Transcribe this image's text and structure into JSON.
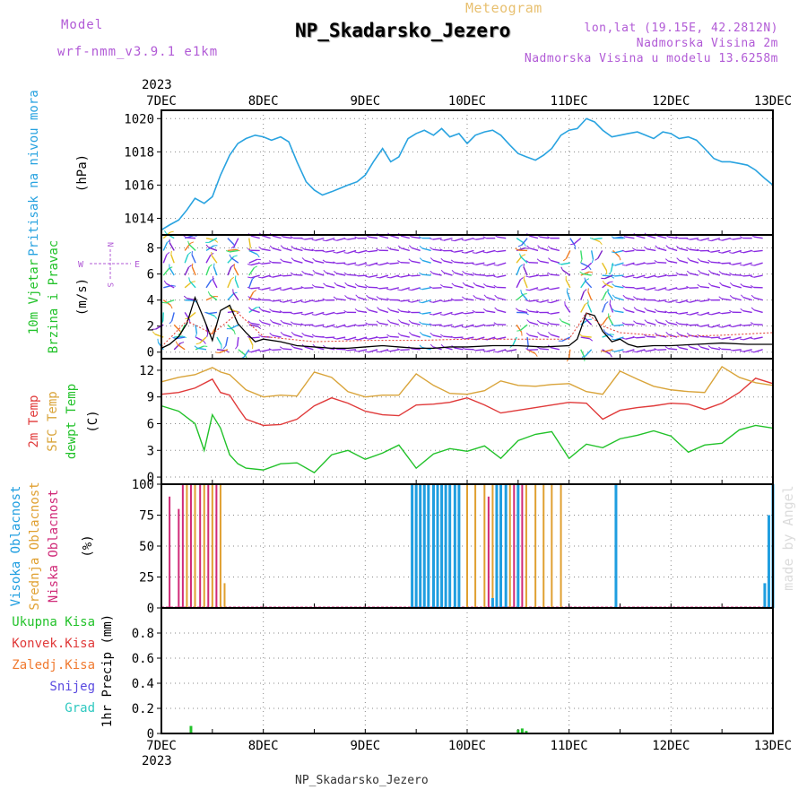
{
  "header": {
    "model_label": "Model",
    "model_name": "wrf-nmm_v3.9.1  e1km",
    "supertitle": "Meteogram",
    "title": "NP_Skadarsko_Jezero",
    "lonlat": "lon,lat (19.15E, 42.2812N)",
    "altitude": "Nadmorska Visina 2m",
    "model_altitude": "Nadmorska Visina u modelu 13.6258m",
    "credit": "made by Angel",
    "footer": "NP_Skadarsko_Jezero"
  },
  "colors": {
    "pressure": "#29a3e0",
    "wind_speed": "#000000",
    "wind_gust": "#e03a2e",
    "temp_2m": "#e03a3a",
    "temp_sfc": "#d9a43a",
    "dewpoint": "#22c22a",
    "cloud_high": "#1f9ee0",
    "cloud_mid": "#e0a030",
    "cloud_low": "#d02a78",
    "precip_total": "#22c22a",
    "grid": "#888888"
  },
  "chart_data": {
    "type": "meteogram",
    "time_axis": {
      "year": "2023",
      "ticks": [
        "7DEC",
        "8DEC",
        "9DEC",
        "10DEC",
        "11DEC",
        "12DEC",
        "13DEC"
      ],
      "range_days": [
        0,
        6
      ]
    },
    "panels": [
      {
        "id": "pressure",
        "type": "line",
        "ylabel_main": "Pritisak na nivou mora",
        "ylabel_unit": "(hPa)",
        "yticks": [
          1014,
          1016,
          1018,
          1020
        ],
        "ylim": [
          1013,
          1020.5
        ],
        "series": [
          {
            "name": "Pritisak na nivou mora",
            "x": [
              0,
              0.08,
              0.17,
              0.25,
              0.33,
              0.42,
              0.5,
              0.58,
              0.67,
              0.75,
              0.83,
              0.92,
              1.0,
              1.08,
              1.17,
              1.25,
              1.33,
              1.42,
              1.5,
              1.58,
              1.67,
              1.75,
              1.83,
              1.92,
              2.0,
              2.08,
              2.17,
              2.25,
              2.33,
              2.42,
              2.5,
              2.58,
              2.67,
              2.75,
              2.83,
              2.92,
              3.0,
              3.08,
              3.17,
              3.25,
              3.33,
              3.42,
              3.5,
              3.58,
              3.67,
              3.75,
              3.83,
              3.92,
              4.0,
              4.08,
              4.17,
              4.25,
              4.33,
              4.42,
              4.5,
              4.58,
              4.67,
              4.75,
              4.83,
              4.92,
              5.0,
              5.08,
              5.17,
              5.25,
              5.33,
              5.42,
              5.5,
              5.58,
              5.67,
              5.75,
              5.83,
              5.92,
              6.0
            ],
            "y": [
              1013.3,
              1013.6,
              1013.9,
              1014.5,
              1015.2,
              1014.9,
              1015.3,
              1016.6,
              1017.8,
              1018.5,
              1018.8,
              1019.0,
              1018.9,
              1018.7,
              1018.9,
              1018.6,
              1017.4,
              1016.2,
              1015.7,
              1015.4,
              1015.6,
              1015.8,
              1016.0,
              1016.2,
              1016.6,
              1017.4,
              1018.2,
              1017.4,
              1017.7,
              1018.8,
              1019.1,
              1019.3,
              1019.0,
              1019.4,
              1018.9,
              1019.1,
              1018.5,
              1019.0,
              1019.2,
              1019.3,
              1019.0,
              1018.4,
              1017.9,
              1017.7,
              1017.5,
              1017.8,
              1018.2,
              1019.0,
              1019.3,
              1019.4,
              1020.0,
              1019.8,
              1019.3,
              1018.9,
              1019.0,
              1019.1,
              1019.2,
              1019.0,
              1018.8,
              1019.2,
              1019.1,
              1018.8,
              1018.9,
              1018.7,
              1018.2,
              1017.6,
              1017.4,
              1017.4,
              1017.3,
              1017.2,
              1016.9,
              1016.4,
              1016.0
            ]
          }
        ]
      },
      {
        "id": "wind",
        "type": "line+barbs",
        "ylabel_main": "10m Vjetar",
        "ylabel_sub": "Brzina i Pravac",
        "ylabel_unit": "(m/s)",
        "compass": {
          "n": "N",
          "s": "S",
          "w": "W",
          "e": "E"
        },
        "yticks": [
          0,
          2,
          4,
          6,
          8
        ],
        "ylim": [
          -0.5,
          9
        ],
        "series": [
          {
            "name": "speed",
            "x": [
              0,
              0.08,
              0.17,
              0.25,
              0.33,
              0.42,
              0.5,
              0.58,
              0.67,
              0.75,
              0.83,
              0.92,
              1.0,
              1.17,
              1.33,
              1.5,
              1.67,
              1.83,
              2.0,
              2.17,
              2.33,
              2.5,
              2.67,
              2.83,
              3.0,
              3.25,
              3.5,
              3.75,
              4.0,
              4.08,
              4.17,
              4.25,
              4.33,
              4.42,
              4.5,
              4.58,
              4.67,
              4.83,
              5.0,
              5.25,
              5.5,
              5.75,
              6.0
            ],
            "y": [
              0.3,
              0.6,
              1.2,
              2.2,
              4.2,
              2.5,
              0.9,
              3.2,
              3.6,
              2.2,
              1.5,
              0.8,
              1.0,
              0.8,
              0.5,
              0.4,
              0.3,
              0.3,
              0.4,
              0.5,
              0.4,
              0.3,
              0.3,
              0.4,
              0.4,
              0.5,
              0.5,
              0.4,
              0.5,
              1.0,
              3.0,
              2.8,
              1.6,
              0.8,
              1.0,
              0.6,
              0.4,
              0.5,
              0.5,
              0.6,
              0.7,
              0.6,
              0.6
            ]
          },
          {
            "name": "gust",
            "x": [
              0,
              0.25,
              0.5,
              0.75,
              1.0,
              1.5,
              2.0,
              2.5,
              3.0,
              3.5,
              4.0,
              4.17,
              4.33,
              4.5,
              5.0,
              5.5,
              6.0
            ],
            "y": [
              0.4,
              2.4,
              1.4,
              3.0,
              1.2,
              0.8,
              0.9,
              0.9,
              1.0,
              1.0,
              1.0,
              3.0,
              2.0,
              1.5,
              1.2,
              1.3,
              1.5
            ]
          }
        ]
      },
      {
        "id": "temperature",
        "type": "line",
        "ylabel_lines": [
          "2m Temp",
          "SFC Temp",
          "dewpt Temp"
        ],
        "ylabel_unit": "(C)",
        "yticks": [
          0,
          3,
          6,
          9,
          12
        ],
        "ylim": [
          -0.8,
          13.3
        ],
        "series": [
          {
            "name": "2m Temp",
            "x": [
              0,
              0.17,
              0.33,
              0.5,
              0.58,
              0.67,
              0.75,
              0.83,
              1.0,
              1.17,
              1.33,
              1.5,
              1.67,
              1.83,
              2.0,
              2.17,
              2.33,
              2.5,
              2.67,
              2.83,
              3.0,
              3.17,
              3.33,
              3.5,
              3.67,
              3.83,
              4.0,
              4.17,
              4.33,
              4.5,
              4.67,
              4.83,
              5.0,
              5.17,
              5.33,
              5.5,
              5.67,
              5.83,
              6.0
            ],
            "y": [
              9.3,
              9.5,
              10.0,
              11.0,
              9.5,
              9.2,
              7.8,
              6.5,
              5.8,
              5.9,
              6.5,
              8.0,
              8.9,
              8.3,
              7.4,
              7.0,
              6.9,
              8.1,
              8.2,
              8.4,
              8.9,
              8.1,
              7.2,
              7.5,
              7.8,
              8.1,
              8.4,
              8.3,
              6.5,
              7.5,
              7.8,
              8.0,
              8.3,
              8.2,
              7.6,
              8.3,
              9.5,
              11.1,
              10.5
            ]
          },
          {
            "name": "SFC Temp",
            "x": [
              0,
              0.17,
              0.33,
              0.5,
              0.58,
              0.67,
              0.83,
              1.0,
              1.17,
              1.33,
              1.5,
              1.67,
              1.83,
              2.0,
              2.17,
              2.33,
              2.5,
              2.67,
              2.83,
              3.0,
              3.17,
              3.33,
              3.5,
              3.67,
              3.83,
              4.0,
              4.17,
              4.33,
              4.5,
              4.67,
              4.83,
              5.0,
              5.17,
              5.33,
              5.5,
              5.67,
              5.83,
              6.0
            ],
            "y": [
              10.7,
              11.2,
              11.5,
              12.3,
              11.8,
              11.5,
              9.8,
              9.0,
              9.2,
              9.1,
              11.8,
              11.2,
              9.6,
              9.0,
              9.2,
              9.2,
              11.6,
              10.3,
              9.4,
              9.3,
              9.7,
              10.8,
              10.3,
              10.2,
              10.4,
              10.5,
              9.6,
              9.3,
              11.9,
              11.0,
              10.2,
              9.8,
              9.6,
              9.5,
              12.4,
              11.2,
              10.6,
              10.3
            ]
          },
          {
            "name": "dewpt Temp",
            "x": [
              0,
              0.17,
              0.33,
              0.42,
              0.5,
              0.58,
              0.67,
              0.75,
              0.83,
              1.0,
              1.17,
              1.33,
              1.5,
              1.67,
              1.83,
              2.0,
              2.17,
              2.33,
              2.5,
              2.67,
              2.83,
              3.0,
              3.17,
              3.33,
              3.5,
              3.67,
              3.83,
              4.0,
              4.17,
              4.33,
              4.5,
              4.67,
              4.83,
              5.0,
              5.17,
              5.33,
              5.5,
              5.67,
              5.83,
              6.0
            ],
            "y": [
              8.0,
              7.4,
              6.0,
              3.0,
              7.0,
              5.5,
              2.5,
              1.5,
              1.0,
              0.8,
              1.5,
              1.6,
              0.5,
              2.5,
              3.0,
              2.0,
              2.7,
              3.6,
              1.0,
              2.6,
              3.2,
              2.9,
              3.5,
              2.1,
              4.1,
              4.8,
              5.1,
              2.1,
              3.7,
              3.3,
              4.3,
              4.7,
              5.2,
              4.6,
              2.8,
              3.6,
              3.8,
              5.3,
              5.8,
              5.5
            ]
          }
        ]
      },
      {
        "id": "clouds",
        "type": "bar",
        "ylabel_lines": [
          "Visoka Oblacnost",
          "Srednja Oblacnost",
          "Niska Oblacnost"
        ],
        "ylabel_unit": "(%)",
        "yticks": [
          0,
          25,
          50,
          75,
          100
        ],
        "ylim": [
          0,
          100
        ],
        "series": [
          {
            "name": "Niska Oblacnost",
            "bars": [
              [
                0.08,
                90
              ],
              [
                0.17,
                80
              ],
              [
                0.21,
                100
              ],
              [
                0.29,
                100
              ],
              [
                0.38,
                100
              ],
              [
                0.46,
                100
              ],
              [
                0.54,
                100
              ],
              [
                3.21,
                90
              ],
              [
                3.29,
                100
              ],
              [
                3.38,
                100
              ],
              [
                3.46,
                100
              ],
              [
                3.54,
                100
              ]
            ]
          },
          {
            "name": "Srednja Oblacnost",
            "bars": [
              [
                0.25,
                100
              ],
              [
                0.33,
                100
              ],
              [
                0.42,
                100
              ],
              [
                0.5,
                100
              ],
              [
                0.58,
                100
              ],
              [
                0.62,
                20
              ],
              [
                3.0,
                100
              ],
              [
                3.08,
                100
              ],
              [
                3.17,
                100
              ],
              [
                3.25,
                100
              ],
              [
                3.33,
                100
              ],
              [
                3.42,
                100
              ],
              [
                3.5,
                100
              ],
              [
                3.58,
                100
              ],
              [
                3.67,
                100
              ],
              [
                3.75,
                100
              ],
              [
                3.83,
                100
              ],
              [
                3.92,
                100
              ]
            ]
          },
          {
            "name": "Visoka Oblacnost",
            "bars": [
              [
                2.46,
                100
              ],
              [
                2.5,
                100
              ],
              [
                2.54,
                100
              ],
              [
                2.58,
                100
              ],
              [
                2.62,
                100
              ],
              [
                2.67,
                100
              ],
              [
                2.71,
                100
              ],
              [
                2.75,
                100
              ],
              [
                2.79,
                100
              ],
              [
                2.83,
                100
              ],
              [
                2.88,
                100
              ],
              [
                2.92,
                100
              ],
              [
                3.25,
                8
              ],
              [
                3.29,
                100
              ],
              [
                3.33,
                100
              ],
              [
                3.38,
                100
              ],
              [
                3.5,
                100
              ],
              [
                4.46,
                100
              ],
              [
                5.92,
                20
              ],
              [
                5.96,
                75
              ],
              [
                6.0,
                100
              ]
            ]
          }
        ]
      },
      {
        "id": "precip",
        "type": "bar",
        "ylabel_lines": [
          "Ukupna Kisa",
          "Konvek.Kisa",
          "Zaledj.Kisa",
          "Snijeg",
          "Grad"
        ],
        "ylabel_unit": "1hr Precip (mm)",
        "yticks": [
          0,
          0.2,
          0.4,
          0.6,
          0.8
        ],
        "ylim": [
          0,
          1.0
        ],
        "series": [
          {
            "name": "Ukupna Kisa",
            "bars": [
              [
                0.29,
                0.06
              ],
              [
                3.5,
                0.03
              ],
              [
                3.54,
                0.04
              ],
              [
                3.58,
                0.02
              ]
            ]
          }
        ]
      }
    ]
  }
}
